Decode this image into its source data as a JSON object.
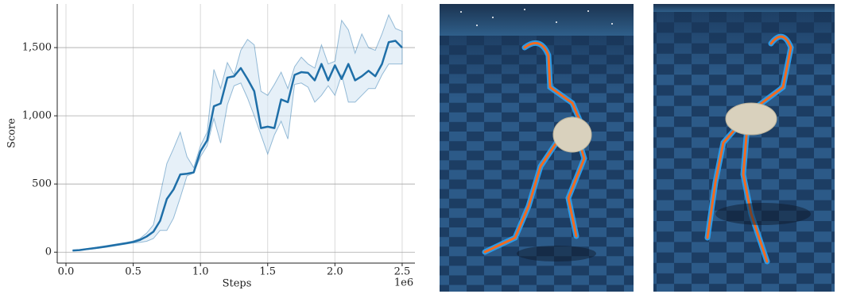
{
  "chart_data": {
    "type": "line",
    "x_label": "Steps",
    "y_label": "Score",
    "x_offset_label": "1e6",
    "x": [
      0.05,
      0.1,
      0.15,
      0.2,
      0.25,
      0.3,
      0.35,
      0.4,
      0.45,
      0.5,
      0.55,
      0.6,
      0.65,
      0.7,
      0.75,
      0.8,
      0.85,
      0.9,
      0.95,
      1.0,
      1.05,
      1.1,
      1.15,
      1.2,
      1.25,
      1.3,
      1.35,
      1.4,
      1.45,
      1.5,
      1.55,
      1.6,
      1.65,
      1.7,
      1.75,
      1.8,
      1.85,
      1.9,
      1.95,
      2.0,
      2.05,
      2.1,
      2.15,
      2.2,
      2.25,
      2.3,
      2.35,
      2.4,
      2.45,
      2.5
    ],
    "values": [
      12,
      15,
      22,
      28,
      35,
      42,
      50,
      58,
      66,
      75,
      90,
      115,
      150,
      230,
      390,
      460,
      570,
      575,
      585,
      740,
      820,
      1070,
      1090,
      1280,
      1290,
      1350,
      1270,
      1180,
      910,
      920,
      910,
      1120,
      1100,
      1300,
      1320,
      1315,
      1260,
      1380,
      1260,
      1370,
      1270,
      1380,
      1260,
      1290,
      1330,
      1290,
      1380,
      1540,
      1550,
      1500
    ],
    "upper": [
      14,
      17,
      25,
      32,
      40,
      48,
      56,
      64,
      72,
      82,
      100,
      140,
      200,
      420,
      650,
      760,
      880,
      700,
      620,
      780,
      880,
      1340,
      1200,
      1390,
      1300,
      1480,
      1560,
      1520,
      1180,
      1150,
      1230,
      1320,
      1200,
      1360,
      1430,
      1380,
      1350,
      1520,
      1380,
      1400,
      1700,
      1630,
      1460,
      1600,
      1500,
      1480,
      1600,
      1740,
      1640,
      1620
    ],
    "lower": [
      10,
      13,
      19,
      24,
      30,
      36,
      44,
      52,
      60,
      68,
      72,
      80,
      100,
      160,
      160,
      250,
      400,
      560,
      580,
      700,
      780,
      980,
      800,
      1080,
      1220,
      1240,
      1130,
      1000,
      860,
      720,
      860,
      960,
      830,
      1230,
      1240,
      1210,
      1100,
      1150,
      1220,
      1150,
      1300,
      1100,
      1100,
      1150,
      1200,
      1200,
      1300,
      1380,
      1380,
      1380
    ],
    "color": "#1f6fa8",
    "band_color": "#d6e6f4",
    "xlim": [
      -0.065,
      2.595
    ],
    "ylim": [
      -80,
      1820
    ],
    "xticks": [
      {
        "value": 0,
        "label": "0.0"
      },
      0.5,
      {
        "value": 1,
        "label": "1.0"
      },
      1.5,
      {
        "value": 2,
        "label": "2.0"
      },
      2.5
    ],
    "yticks": [
      0,
      500,
      {
        "value": 1000,
        "label": "1,000"
      },
      {
        "value": 1500,
        "label": "1,500"
      }
    ],
    "grid": true
  }
}
